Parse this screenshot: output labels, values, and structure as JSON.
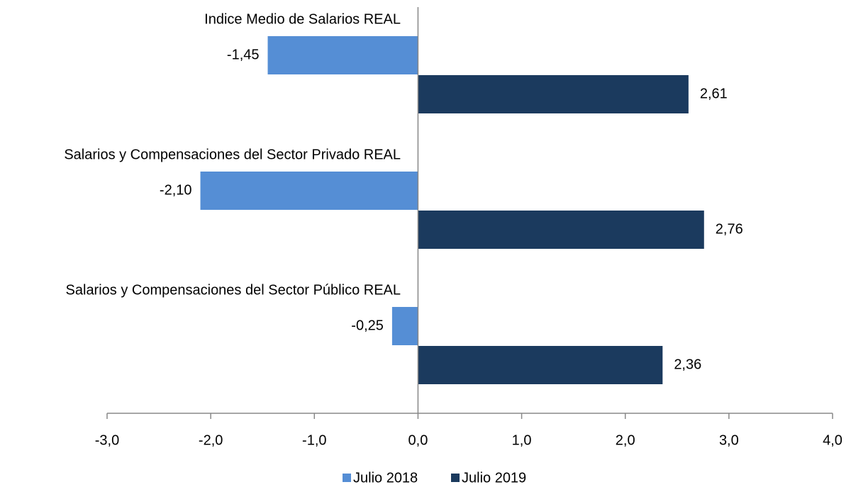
{
  "chart_data": {
    "type": "bar",
    "orientation": "horizontal",
    "categories": [
      "Indice Medio de Salarios REAL",
      "Salarios y Compensaciones del Sector Privado REAL",
      "Salarios y Compensaciones del Sector Público REAL"
    ],
    "series": [
      {
        "name": "Julio 2018",
        "color": "#558ed5",
        "values": [
          -1.45,
          -2.1,
          -0.25
        ],
        "value_labels": [
          "-1,45",
          "-2,10",
          "-0,25"
        ]
      },
      {
        "name": "Julio 2019",
        "color": "#1b3a5e",
        "values": [
          2.61,
          2.76,
          2.36
        ],
        "value_labels": [
          "2,61",
          "2,76",
          "2,36"
        ]
      }
    ],
    "xlim": [
      -3,
      4
    ],
    "xticks": [
      {
        "value": -3,
        "label": "-3,0"
      },
      {
        "value": -2,
        "label": "-2,0"
      },
      {
        "value": -1,
        "label": "-1,0"
      },
      {
        "value": 0,
        "label": "0,0"
      },
      {
        "value": 1,
        "label": "1,0"
      },
      {
        "value": 2,
        "label": "2,0"
      },
      {
        "value": 3,
        "label": "3,0"
      },
      {
        "value": 4,
        "label": "4,0"
      }
    ],
    "legend": "bottom"
  }
}
